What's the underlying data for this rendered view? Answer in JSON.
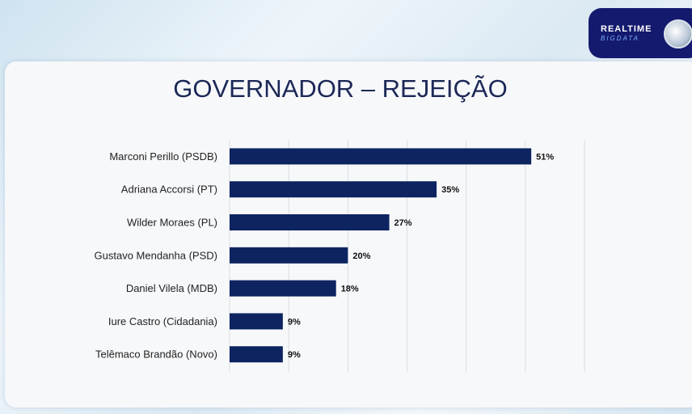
{
  "logo": {
    "line1": "REALTIME",
    "line2": "BIGDATA"
  },
  "chart_data": {
    "type": "bar",
    "orientation": "horizontal",
    "title": "GOVERNADOR – REJEIÇÃO",
    "categories": [
      "Marconi Perillo (PSDB)",
      "Adriana Accorsi (PT)",
      "Wilder Moraes (PL)",
      "Gustavo Mendanha (PSD)",
      "Daniel Vilela (MDB)",
      "Iure Castro (Cidadania)",
      "Telêmaco Brandão (Novo)"
    ],
    "values": [
      51,
      35,
      27,
      20,
      18,
      9,
      9
    ],
    "data_labels": [
      "51%",
      "35%",
      "27%",
      "20%",
      "18%",
      "9%",
      "9%"
    ],
    "xlim": [
      0,
      60
    ],
    "grid": true,
    "bar_color": "#0d2461"
  }
}
